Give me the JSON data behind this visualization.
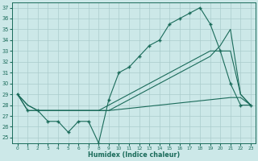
{
  "xlabel": "Humidex (Indice chaleur)",
  "xlim": [
    -0.5,
    23.5
  ],
  "ylim": [
    24.5,
    37.5
  ],
  "yticks": [
    25,
    26,
    27,
    28,
    29,
    30,
    31,
    32,
    33,
    34,
    35,
    36,
    37
  ],
  "xticks": [
    0,
    1,
    2,
    3,
    4,
    5,
    6,
    7,
    8,
    9,
    10,
    11,
    12,
    13,
    14,
    15,
    16,
    17,
    18,
    19,
    20,
    21,
    22,
    23
  ],
  "bg_color": "#cce8e8",
  "grid_color": "#aacccc",
  "line_color": "#1a6b5a",
  "line1_y": [
    29.0,
    27.5,
    27.5,
    26.5,
    26.5,
    25.5,
    26.5,
    26.5,
    24.5,
    28.5,
    31.0,
    31.5,
    32.5,
    33.5,
    34.0,
    35.5,
    36.0,
    36.5,
    37.0,
    35.5,
    33.0,
    30.0,
    28.0,
    28.0
  ],
  "line2_y": [
    29.0,
    28.0,
    27.5,
    27.5,
    27.5,
    27.5,
    27.5,
    27.5,
    27.5,
    28.0,
    28.5,
    29.0,
    29.5,
    30.0,
    30.5,
    31.0,
    31.5,
    32.0,
    32.5,
    33.0,
    33.0,
    33.0,
    29.0,
    28.0
  ],
  "line3_y": [
    29.0,
    28.0,
    27.5,
    27.5,
    27.5,
    27.5,
    27.5,
    27.5,
    27.5,
    27.5,
    28.0,
    28.5,
    29.0,
    29.5,
    30.0,
    30.5,
    31.0,
    31.5,
    32.0,
    32.5,
    33.5,
    35.0,
    29.0,
    28.0
  ],
  "line4_y": [
    29.0,
    27.5,
    27.5,
    27.5,
    27.5,
    27.5,
    27.5,
    27.5,
    27.5,
    27.5,
    27.6,
    27.7,
    27.8,
    27.9,
    28.0,
    28.1,
    28.2,
    28.3,
    28.4,
    28.5,
    28.6,
    28.7,
    28.7,
    28.0
  ]
}
